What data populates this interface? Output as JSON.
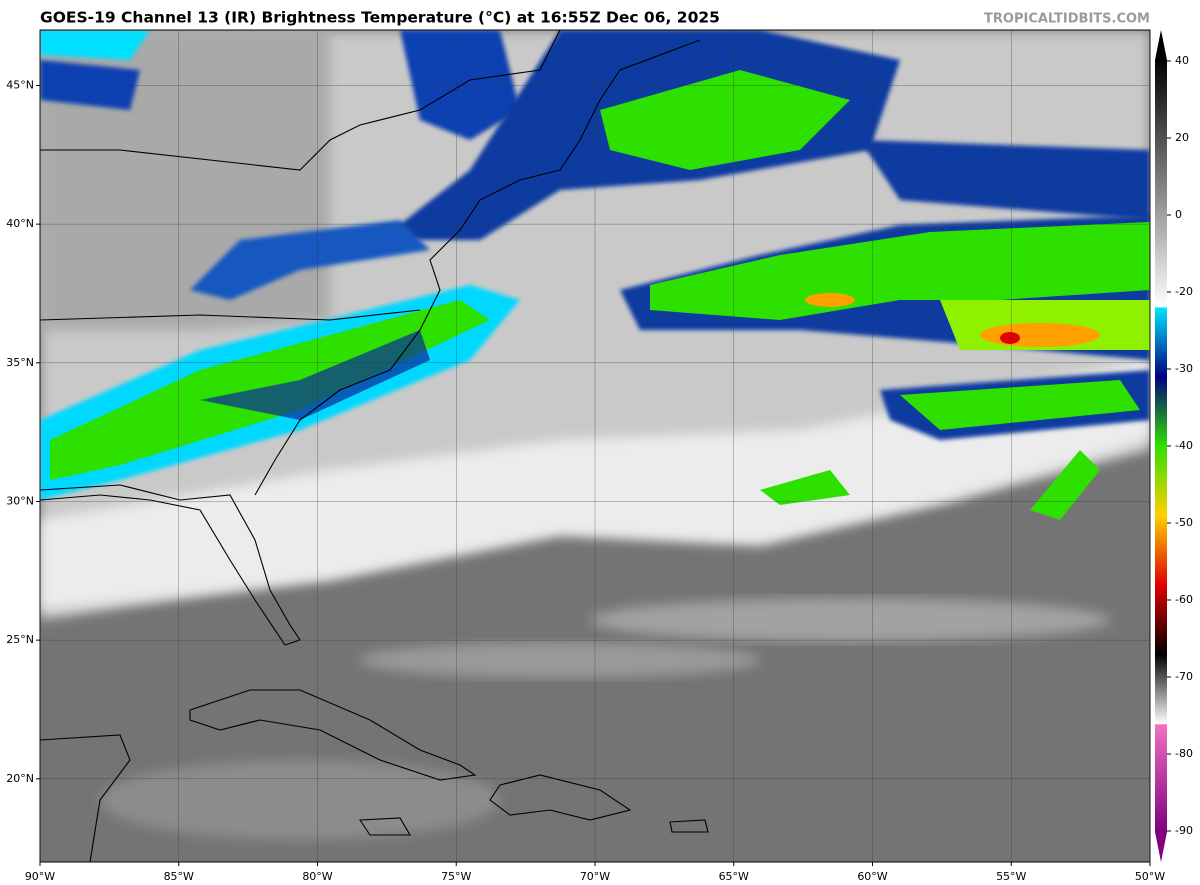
{
  "map": {
    "title": "GOES-19 Channel 13 (IR) Brightness Temperature (°C) at 16:55Z Dec 06, 2025",
    "credit": "TROPICALTIDBITS.COM",
    "lonlim": [
      -90,
      -50
    ],
    "latlim": [
      17,
      47
    ],
    "lonticks": [
      {
        "value": -90,
        "label": "90°W"
      },
      {
        "value": -85,
        "label": "85°W"
      },
      {
        "value": -80,
        "label": "80°W"
      },
      {
        "value": -75,
        "label": "75°W"
      },
      {
        "value": -70,
        "label": "70°W"
      },
      {
        "value": -65,
        "label": "65°W"
      },
      {
        "value": -60,
        "label": "60°W"
      },
      {
        "value": -55,
        "label": "55°W"
      },
      {
        "value": -50,
        "label": "50°W"
      }
    ],
    "latticks": [
      {
        "value": 20,
        "label": "20°N"
      },
      {
        "value": 25,
        "label": "25°N"
      },
      {
        "value": 30,
        "label": "30°N"
      },
      {
        "value": 35,
        "label": "35°N"
      },
      {
        "value": 40,
        "label": "40°N"
      },
      {
        "value": 45,
        "label": "45°N"
      }
    ],
    "grid": true
  },
  "colorbar": {
    "ticks": [
      40,
      20,
      0,
      -20,
      -30,
      -40,
      -50,
      -60,
      -70,
      -80,
      -90
    ]
  }
}
